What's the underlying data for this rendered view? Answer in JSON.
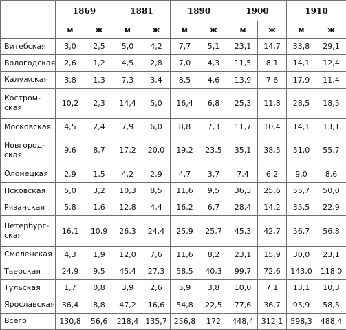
{
  "years": [
    "1869",
    "1881",
    "1890",
    "1900",
    "1910"
  ],
  "sex_labels": [
    "м",
    "ж"
  ],
  "rows": [
    {
      "region": "Витебская",
      "values": [
        "3,0",
        "2,5",
        "5,0",
        "4,2",
        "7,7",
        "5,1",
        "23,1",
        "14,7",
        "33,8",
        "29,1"
      ]
    },
    {
      "region": "Вологодская",
      "values": [
        "2,6",
        "1,2",
        "4,5",
        "2,8",
        "7,0",
        "4,3",
        "11,5",
        "8,1",
        "14,1",
        "12,4"
      ]
    },
    {
      "region": "Калужская",
      "values": [
        "3,8",
        "1,3",
        "7,3",
        "3,4",
        "8,5",
        "4,6",
        "13,9",
        "7,6",
        "17,9",
        "11,4"
      ]
    },
    {
      "region": "Костром-\nская",
      "values": [
        "10,2",
        "2,3",
        "14,4",
        "5,0",
        "16,4",
        "6,8",
        "25,3",
        "11,8",
        "28,5",
        "18,5"
      ]
    },
    {
      "region": "Московская",
      "values": [
        "4,5",
        "2,4",
        "7,9",
        "6,0",
        "8,8",
        "7,3",
        "11,7",
        "10,4",
        "14,1",
        "13,1"
      ]
    },
    {
      "region": "Новгород-\nская",
      "values": [
        "9,6",
        "8,7",
        "17,2",
        "20,0",
        "19,2",
        "23,5",
        "35,1",
        "38,5",
        "51,0",
        "55,7"
      ]
    },
    {
      "region": "Олонецкая",
      "values": [
        "2,9",
        "1,5",
        "4,2",
        "2,9",
        "4,7",
        "3,7",
        "7,4",
        "6,2",
        "9,0",
        "8,6"
      ]
    },
    {
      "region": "Псковская",
      "values": [
        "5,0",
        "3,2",
        "10,3",
        "8,5",
        "11,6",
        "9,5",
        "36,3",
        "25,6",
        "55,7",
        "50,0"
      ]
    },
    {
      "region": "Рязанская",
      "values": [
        "5,8",
        "1,6",
        "12,8",
        "4,4",
        "16,2",
        "6,7",
        "28,4",
        "14,2",
        "35,5",
        "22,9"
      ]
    },
    {
      "region": "Петербург-\nская",
      "values": [
        "16,1",
        "10,9",
        "26,3",
        "24,4",
        "25,9",
        "25,7",
        "45,3",
        "42,7",
        "56,7",
        "56,8"
      ]
    },
    {
      "region": "Смоленская",
      "values": [
        "4,3",
        "1,9",
        "12,0",
        "7,6",
        "11,6",
        "8,2",
        "23,1",
        "15,9",
        "30,0",
        "23,1"
      ]
    },
    {
      "region": "Тверская",
      "values": [
        "24,9",
        "9,5",
        "45,4",
        "27,3",
        "58,5",
        "40,3",
        "99,7",
        "72,6",
        "143,0",
        "118,0"
      ]
    },
    {
      "region": "Тульская",
      "values": [
        "1,7",
        "0,8",
        "3,9",
        "2,6",
        "5,9",
        "3,8",
        "10,0",
        "7,1",
        "13,1",
        "10,3"
      ]
    },
    {
      "region": "Ярославская",
      "values": [
        "36,4",
        "8,8",
        "47,2",
        "16,6",
        "54,8",
        "22,5",
        "77,6",
        "36,7",
        "95,9",
        "58,5"
      ]
    },
    {
      "region": "Всего",
      "values": [
        "130,8",
        "56,6",
        "218,4",
        "135,7",
        "256,8",
        "172",
        "448,4",
        "312,1",
        "598,3",
        "488,4"
      ]
    }
  ]
}
